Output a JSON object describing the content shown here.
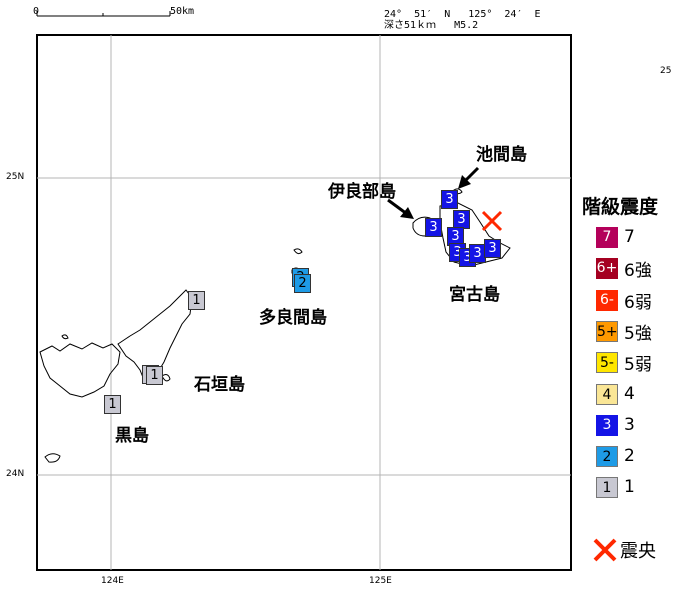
{
  "header": {
    "scale_zero": "0",
    "scale_distance": "50km",
    "coordinates": "24°  51′  N   125°  24′  E",
    "depth_magnitude": "深さ51ｋｍ   M5.2"
  },
  "axis": {
    "lat_25": "25N",
    "lat_24": "24N",
    "lon_124": "124E",
    "lon_125": "125E",
    "edge_25": "25"
  },
  "places": {
    "ikema": "池間島",
    "irabu": "伊良部島",
    "miyako": "宮古島",
    "tarama": "多良間島",
    "ishigaki": "石垣島",
    "kuroshima": "黒島"
  },
  "stations": [
    {
      "value": "3",
      "cls": "3"
    },
    {
      "value": "3",
      "cls": "3"
    },
    {
      "value": "3",
      "cls": "3"
    },
    {
      "value": "3",
      "cls": "3"
    },
    {
      "value": "3",
      "cls": "3"
    },
    {
      "value": "3",
      "cls": "3"
    },
    {
      "value": "3",
      "cls": "3"
    },
    {
      "value": "3",
      "cls": "3"
    },
    {
      "value": "2",
      "cls": "2"
    },
    {
      "value": "2",
      "cls": "2"
    },
    {
      "value": "1",
      "cls": "1"
    },
    {
      "value": "1",
      "cls": "1"
    },
    {
      "value": "1",
      "cls": "1"
    },
    {
      "value": "1",
      "cls": "1"
    }
  ],
  "legend": {
    "title": "階級震度",
    "items": [
      {
        "badge": "7",
        "label": "7",
        "color": "#b4005a",
        "text_color": "#ffffff"
      },
      {
        "badge": "6+",
        "label": "6強",
        "color": "#a50021",
        "text_color": "#ffffff"
      },
      {
        "badge": "6-",
        "label": "6弱",
        "color": "#ff2800",
        "text_color": "#ffffff"
      },
      {
        "badge": "5+",
        "label": "5強",
        "color": "#ff9900",
        "text_color": "#000000"
      },
      {
        "badge": "5-",
        "label": "5弱",
        "color": "#ffe600",
        "text_color": "#000000"
      },
      {
        "badge": "4",
        "label": "4",
        "color": "#fae696",
        "text_color": "#000000"
      },
      {
        "badge": "3",
        "label": "3",
        "color": "#1414e6",
        "text_color": "#ffffff"
      },
      {
        "badge": "2",
        "label": "2",
        "color": "#1e9be6",
        "text_color": "#000000"
      },
      {
        "badge": "1",
        "label": "1",
        "color": "#c8c8d2",
        "text_color": "#000000"
      }
    ],
    "epicenter_label": "震央",
    "epicenter_color": "#ff2800"
  }
}
